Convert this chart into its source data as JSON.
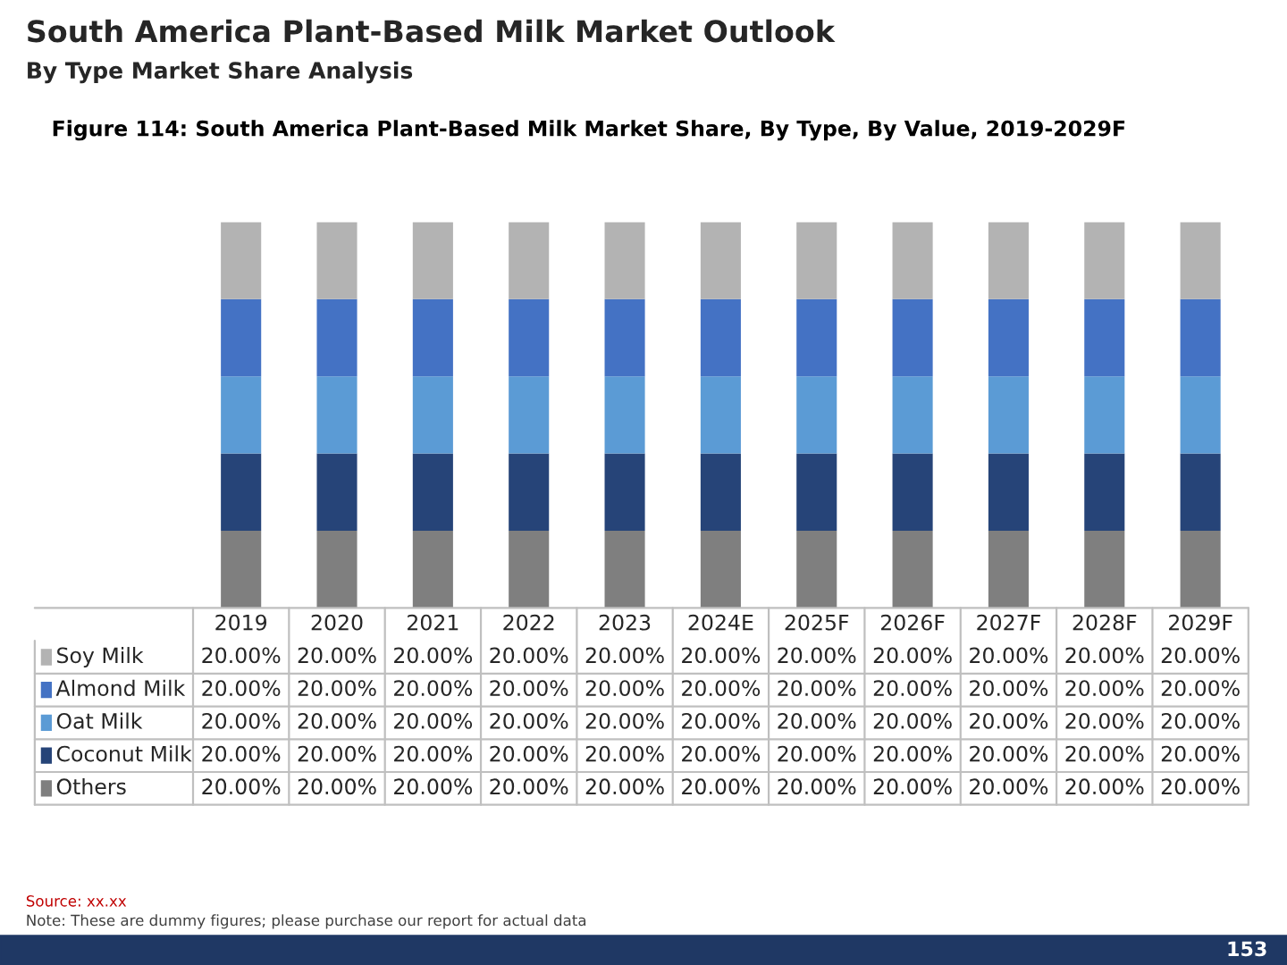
{
  "chart_data": {
    "type": "bar",
    "stacked": true,
    "legend": "bottom left",
    "title": "South America Plant-Based Milk Market Outlook",
    "subtitle": "By Type Market Share Analysis",
    "annotations": [
      "Figure 114: South America Plant-Based Milk Market Share, By Type, By Value, 2019-2029F",
      "Source: xx.xx",
      "Note: These are dummy figures; please purchase our report for actual data",
      "153"
    ],
    "categories": [
      "2019",
      "2020",
      "2021",
      "2022",
      "2023",
      "2024E",
      "2025F",
      "2026F",
      "2027F",
      "2028F",
      "2029F"
    ],
    "series": [
      {
        "name": "Others",
        "color": "#7f7f7f",
        "values": [
          20,
          20,
          20,
          20,
          20,
          20,
          20,
          20,
          20,
          20,
          20
        ],
        "value_labels": [
          "20.00%",
          "20.00%",
          "20.00%",
          "20.00%",
          "20.00%",
          "20.00%",
          "20.00%",
          "20.00%",
          "20.00%",
          "20.00%",
          "20.00%"
        ]
      },
      {
        "name": "Coconut Milk",
        "color": "#264478",
        "values": [
          20,
          20,
          20,
          20,
          20,
          20,
          20,
          20,
          20,
          20,
          20
        ],
        "value_labels": [
          "20.00%",
          "20.00%",
          "20.00%",
          "20.00%",
          "20.00%",
          "20.00%",
          "20.00%",
          "20.00%",
          "20.00%",
          "20.00%",
          "20.00%"
        ]
      },
      {
        "name": "Oat Milk",
        "color": "#5b9bd5",
        "values": [
          20,
          20,
          20,
          20,
          20,
          20,
          20,
          20,
          20,
          20,
          20
        ],
        "value_labels": [
          "20.00%",
          "20.00%",
          "20.00%",
          "20.00%",
          "20.00%",
          "20.00%",
          "20.00%",
          "20.00%",
          "20.00%",
          "20.00%",
          "20.00%"
        ]
      },
      {
        "name": "Almond Milk",
        "color": "#4472c4",
        "values": [
          20,
          20,
          20,
          20,
          20,
          20,
          20,
          20,
          20,
          20,
          20
        ],
        "value_labels": [
          "20.00%",
          "20.00%",
          "20.00%",
          "20.00%",
          "20.00%",
          "20.00%",
          "20.00%",
          "20.00%",
          "20.00%",
          "20.00%",
          "20.00%"
        ]
      },
      {
        "name": "Soy Milk",
        "color": "#b3b3b3",
        "values": [
          20,
          20,
          20,
          20,
          20,
          20,
          20,
          20,
          20,
          20,
          20
        ],
        "value_labels": [
          "20.00%",
          "20.00%",
          "20.00%",
          "20.00%",
          "20.00%",
          "20.00%",
          "20.00%",
          "20.00%",
          "20.00%",
          "20.00%",
          "20.00%"
        ]
      }
    ]
  }
}
